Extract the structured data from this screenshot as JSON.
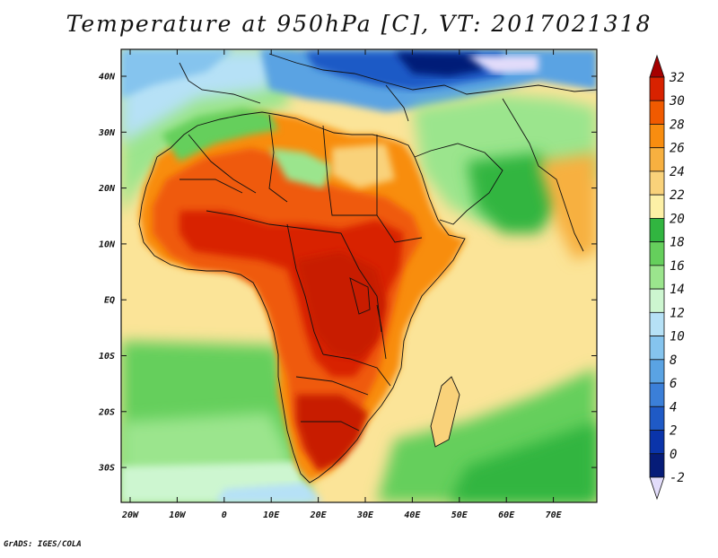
{
  "map": {
    "title": "Temperature at 950hPa [C], VT: 2017021318",
    "credit": "GrADS: IGES/COLA",
    "lat_labels": [
      "40N",
      "30N",
      "20N",
      "10N",
      "EQ",
      "10S",
      "20S",
      "30S"
    ],
    "lon_labels": [
      "20W",
      "10W",
      "0",
      "10E",
      "20E",
      "30E",
      "40E",
      "50E",
      "60E",
      "70E"
    ],
    "colorbar": {
      "labels": [
        "32",
        "30",
        "28",
        "26",
        "24",
        "22",
        "20",
        "18",
        "16",
        "14",
        "12",
        "10",
        "8",
        "6",
        "4",
        "2",
        "0",
        "-2"
      ],
      "colors": [
        "#a50000",
        "#d82200",
        "#f05a00",
        "#f88d10",
        "#f7b040",
        "#f9d27a",
        "#fdf0a6",
        "#31b540",
        "#65cf5c",
        "#9be58d",
        "#cdf6d0",
        "#b6e1f6",
        "#85c4ee",
        "#5aa3e3",
        "#3b7fd8",
        "#1f5ac6",
        "#0a34aa",
        "#061c78",
        "#e2dcfa"
      ]
    },
    "colors": {
      "ocean_warm": "#fbe498",
      "ocean_sw": "#7fd46b",
      "ocean_mid": "#c8f3c6",
      "ocean_cold": "#b6e1f6",
      "land_hot": "#c81e00",
      "land_warm": "#ef5a10",
      "med_cold": "#1f5ac6",
      "europe_cold": "#061c78"
    }
  }
}
